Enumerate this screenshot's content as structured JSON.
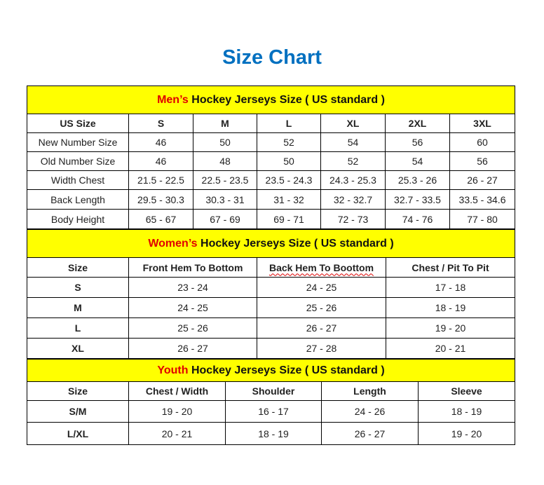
{
  "title": "Size Chart",
  "mens": {
    "header_highlight": "Men’s",
    "header_rest": " Hockey Jerseys Size ( US standard )",
    "columns": [
      "US Size",
      "S",
      "M",
      "L",
      "XL",
      "2XL",
      "3XL"
    ],
    "rows": [
      [
        "New Number Size",
        "46",
        "50",
        "52",
        "54",
        "56",
        "60"
      ],
      [
        "Old Number Size",
        "46",
        "48",
        "50",
        "52",
        "54",
        "56"
      ],
      [
        "Width Chest",
        "21.5 - 22.5",
        "22.5 - 23.5",
        "23.5 - 24.3",
        "24.3 - 25.3",
        "25.3 - 26",
        "26 - 27"
      ],
      [
        "Back Length",
        "29.5 - 30.3",
        "30.3 - 31",
        "31 - 32",
        "32 - 32.7",
        "32.7 - 33.5",
        "33.5 - 34.6"
      ],
      [
        "Body Height",
        "65 - 67",
        "67 - 69",
        "69 - 71",
        "72 - 73",
        "74 - 76",
        "77 - 80"
      ]
    ]
  },
  "womens": {
    "header_highlight": "Women’s",
    "header_rest": " Hockey Jerseys Size ( US standard )",
    "columns": [
      "Size",
      "Front Hem To Bottom",
      "Back Hem To Boottom",
      "Chest / Pit To Pit"
    ],
    "rows": [
      [
        "S",
        "23 - 24",
        "24 - 25",
        "17 - 18"
      ],
      [
        "M",
        "24 - 25",
        "25 - 26",
        "18 - 19"
      ],
      [
        "L",
        "25 - 26",
        "26 - 27",
        "19 - 20"
      ],
      [
        "XL",
        "26 - 27",
        "27 - 28",
        "20 - 21"
      ]
    ]
  },
  "youth": {
    "header_highlight": "Youth",
    "header_rest": " Hockey Jerseys Size ( US standard )",
    "columns": [
      "Size",
      "Chest / Width",
      "Shoulder",
      "Length",
      "Sleeve"
    ],
    "rows": [
      [
        "S/M",
        "19 - 20",
        "16 - 17",
        "24 - 26",
        "18 - 19"
      ],
      [
        "L/XL",
        "20 - 21",
        "18 - 19",
        "26 - 27",
        "19 - 20"
      ]
    ]
  }
}
